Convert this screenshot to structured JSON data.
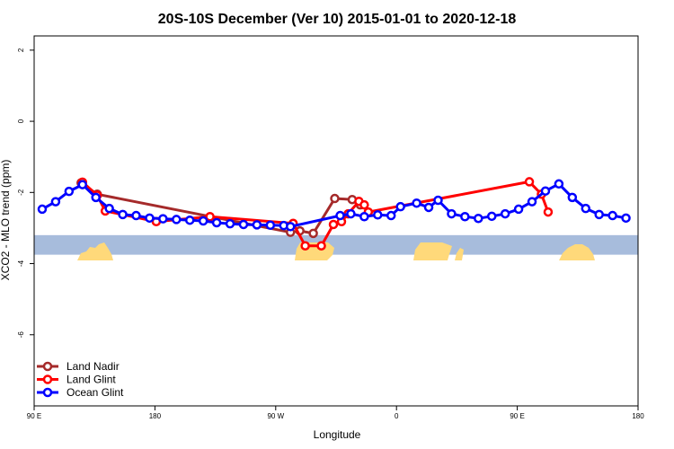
{
  "chart_data": {
    "type": "line",
    "title": "20S-10S December (Ver 10)   2015-01-01 to 2020-12-18",
    "xlabel": "Longitude",
    "ylabel": "XCO2 - MLO trend (ppm)",
    "xlim": [
      90,
      540
    ],
    "ylim": [
      -8,
      2.4
    ],
    "x_ticks": [
      {
        "value": 90,
        "label": "90 E"
      },
      {
        "value": 180,
        "label": "180"
      },
      {
        "value": 270,
        "label": "90 W"
      },
      {
        "value": 360,
        "label": "0"
      },
      {
        "value": 450,
        "label": "90 E"
      },
      {
        "value": 540,
        "label": "180"
      }
    ],
    "y_ticks": [
      {
        "value": 2,
        "label": "2"
      },
      {
        "value": 0,
        "label": "0"
      },
      {
        "value": -2,
        "label": "-2"
      },
      {
        "value": -4,
        "label": "-4"
      },
      {
        "value": -6,
        "label": "-6"
      }
    ],
    "grid": false,
    "legend_position": "bottom-left",
    "map_strip": {
      "y_top": -3.2,
      "y_bottom": -3.75,
      "ocean_color": "#a7bcdc",
      "land_color": "#ffd97a"
    },
    "series": [
      {
        "name": "Land Nadir",
        "color": "#a52a2a",
        "points": [
          [
            125,
            -1.73
          ],
          [
            137,
            -2.05
          ],
          [
            281,
            -3.12
          ],
          [
            288,
            -3.08
          ],
          [
            298,
            -3.15
          ],
          [
            314,
            -2.17
          ],
          [
            327,
            -2.2
          ],
          [
            333,
            -2.35
          ]
        ]
      },
      {
        "name": "Land Glint",
        "color": "#ff0000",
        "points": [
          [
            126,
            -1.71
          ],
          [
            137,
            -2.08
          ],
          [
            143,
            -2.52
          ],
          [
            181,
            -2.82
          ],
          [
            221,
            -2.68
          ],
          [
            283,
            -2.87
          ],
          [
            292,
            -3.5
          ],
          [
            304,
            -3.5
          ],
          [
            313,
            -2.9
          ],
          [
            319,
            -2.82
          ],
          [
            324,
            -2.6
          ],
          [
            332,
            -2.25
          ],
          [
            336,
            -2.35
          ],
          [
            339,
            -2.55
          ],
          [
            459,
            -1.7
          ],
          [
            468,
            -2.05
          ],
          [
            473,
            -2.55
          ]
        ]
      },
      {
        "name": "Ocean Glint",
        "color": "#0000ff",
        "points": [
          [
            96,
            -2.47
          ],
          [
            106,
            -2.26
          ],
          [
            116,
            -1.97
          ],
          [
            126,
            -1.78
          ],
          [
            136,
            -2.14
          ],
          [
            146,
            -2.45
          ],
          [
            156,
            -2.62
          ],
          [
            166,
            -2.65
          ],
          [
            176,
            -2.72
          ],
          [
            186,
            -2.74
          ],
          [
            196,
            -2.76
          ],
          [
            206,
            -2.78
          ],
          [
            216,
            -2.8
          ],
          [
            226,
            -2.85
          ],
          [
            236,
            -2.88
          ],
          [
            246,
            -2.9
          ],
          [
            256,
            -2.91
          ],
          [
            266,
            -2.92
          ],
          [
            276,
            -2.93
          ],
          [
            281,
            -2.96
          ],
          [
            318,
            -2.65
          ],
          [
            326,
            -2.6
          ],
          [
            336,
            -2.68
          ],
          [
            346,
            -2.63
          ],
          [
            356,
            -2.65
          ],
          [
            363,
            -2.4
          ],
          [
            375,
            -2.3
          ],
          [
            384,
            -2.42
          ],
          [
            391,
            -2.22
          ],
          [
            401,
            -2.6
          ],
          [
            411,
            -2.68
          ],
          [
            421,
            -2.73
          ],
          [
            431,
            -2.67
          ],
          [
            441,
            -2.6
          ],
          [
            451,
            -2.47
          ],
          [
            461,
            -2.26
          ],
          [
            471,
            -1.96
          ],
          [
            481,
            -1.76
          ],
          [
            491,
            -2.14
          ],
          [
            501,
            -2.45
          ],
          [
            511,
            -2.62
          ],
          [
            521,
            -2.65
          ],
          [
            531,
            -2.72
          ]
        ]
      }
    ]
  }
}
